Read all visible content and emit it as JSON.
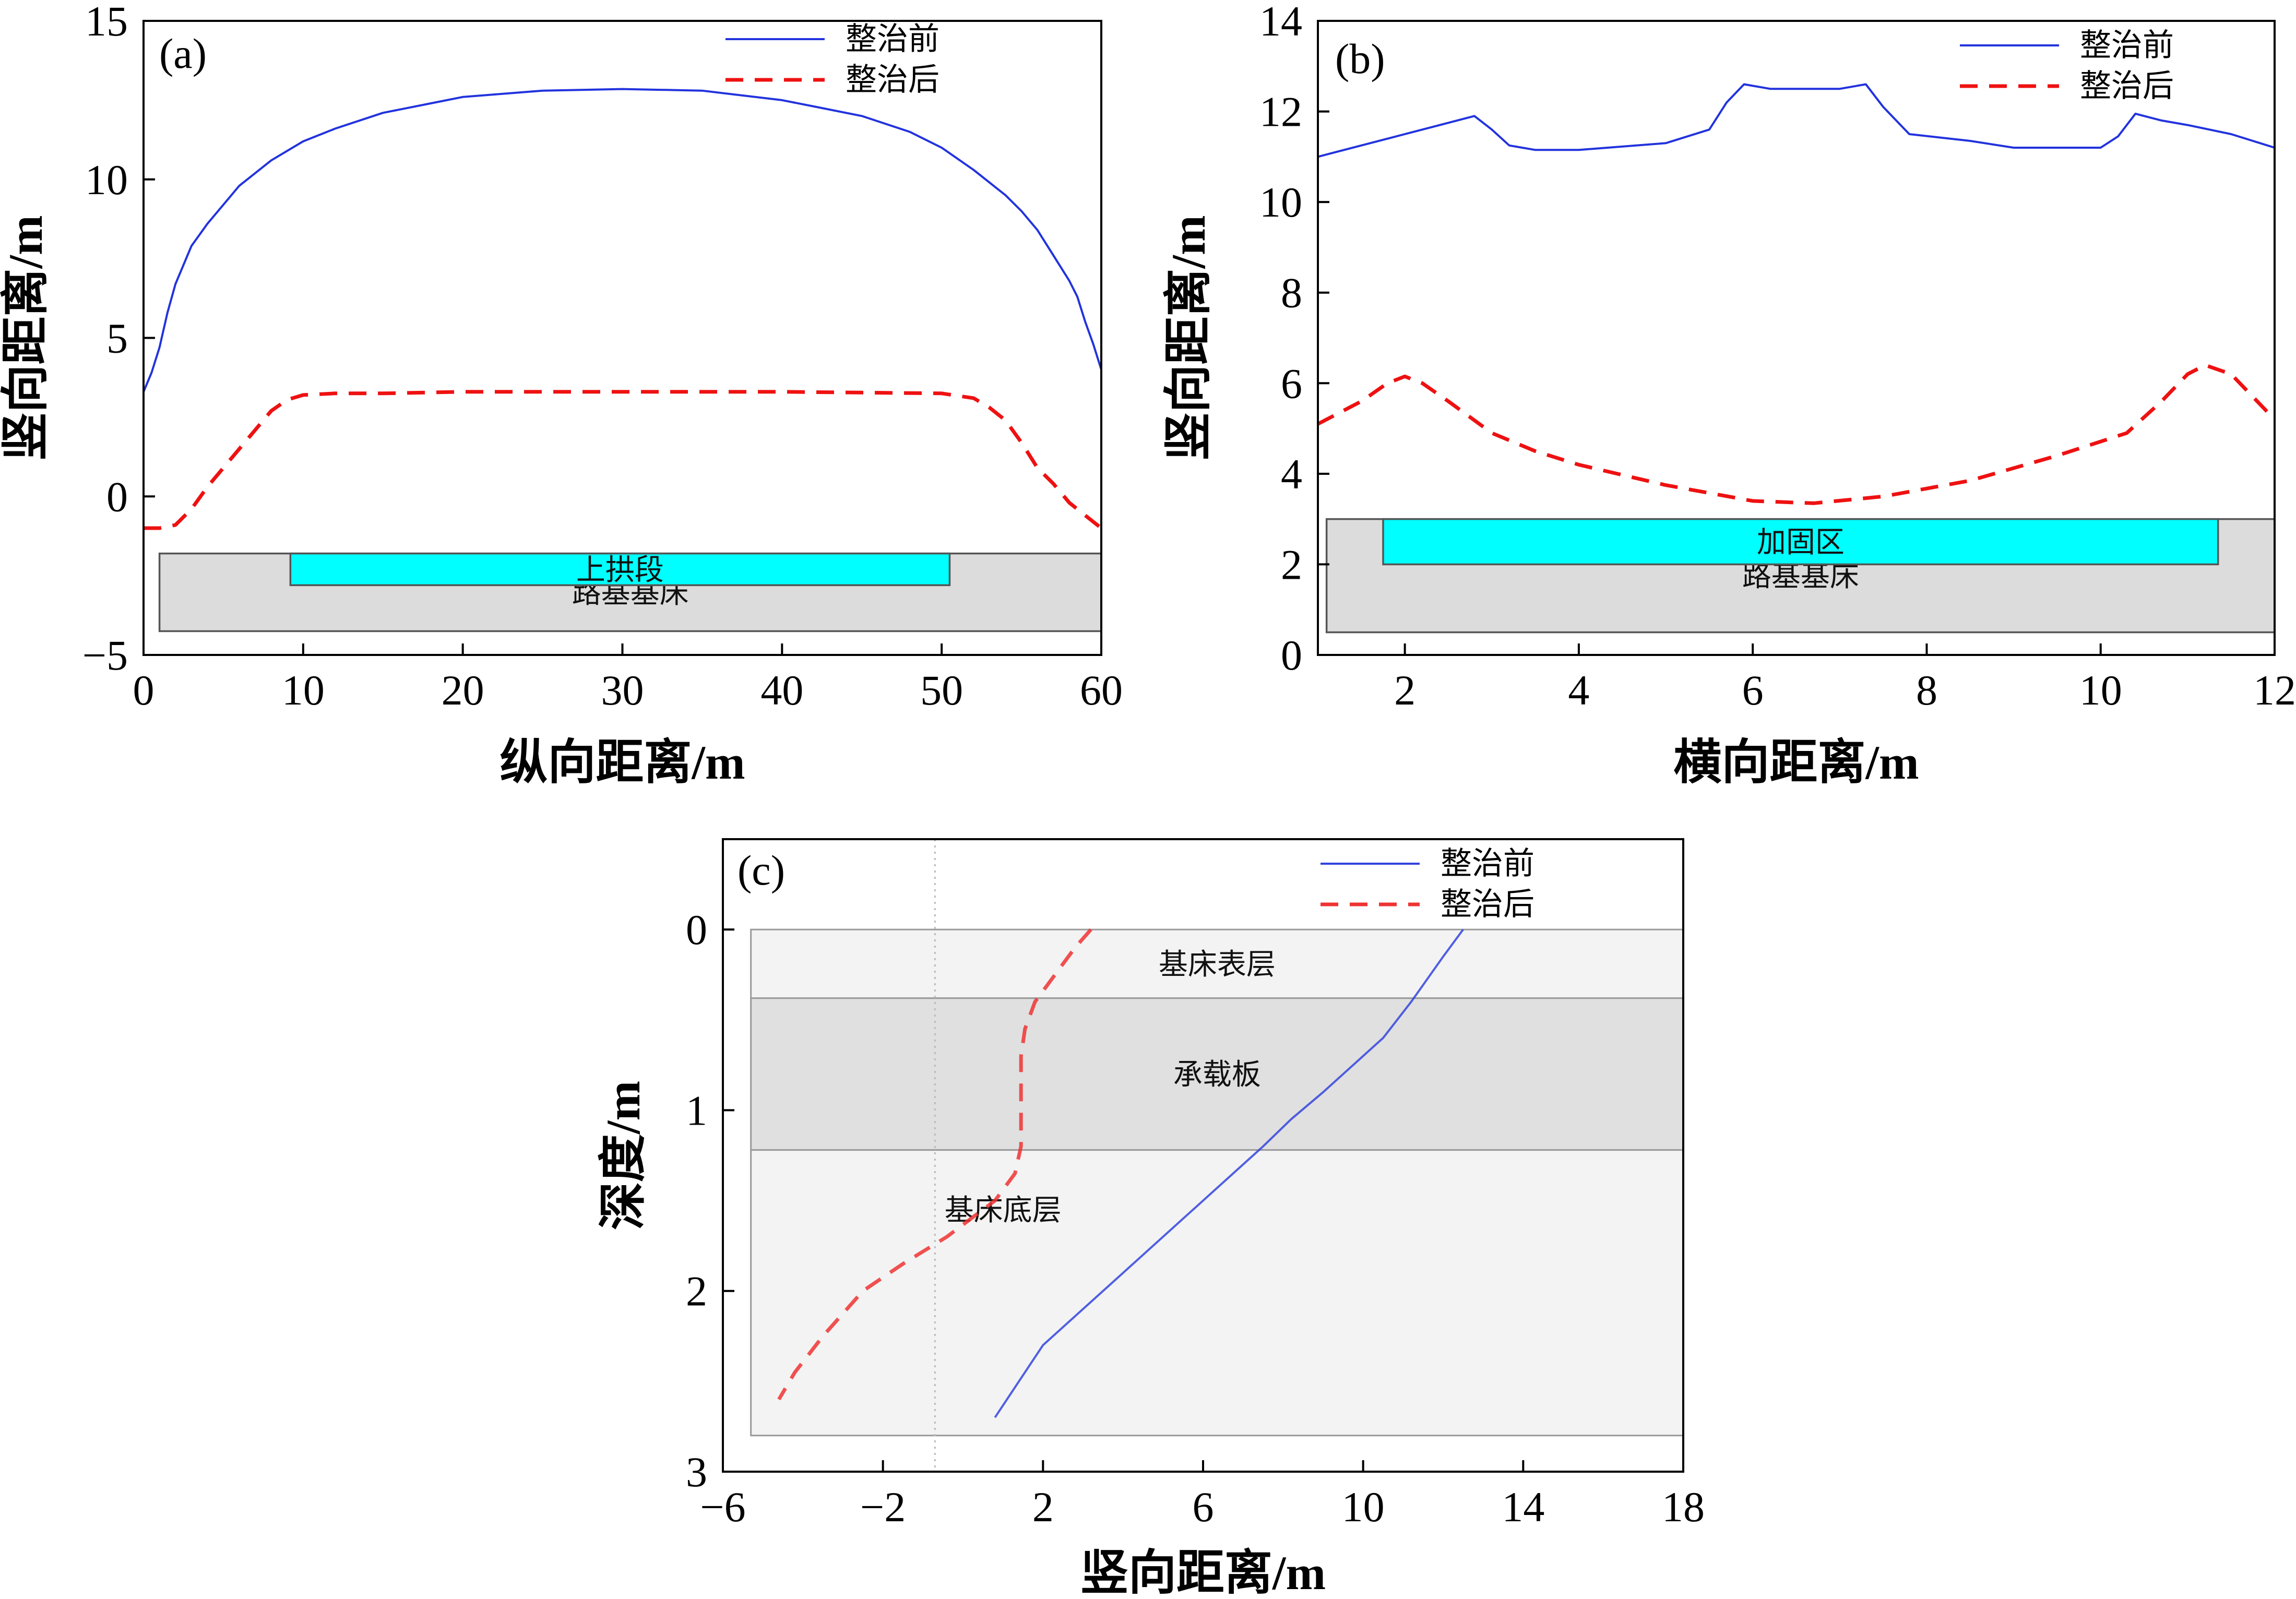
{
  "chart_data": [
    {
      "id": "a",
      "type": "line",
      "panel_label": "(a)",
      "xlabel": "纵向距离/m",
      "ylabel": "竖向距离/m",
      "xlim": [
        0,
        60
      ],
      "ylim": [
        -5,
        15
      ],
      "xticks": [
        0,
        10,
        20,
        30,
        40,
        50,
        60
      ],
      "yticks": [
        -5,
        0,
        5,
        10,
        15
      ],
      "legend_position": "top-right",
      "series": [
        {
          "name": "整治前",
          "color": "#2233dd",
          "style": "solid",
          "x": [
            0,
            0.5,
            1,
            1.5,
            2,
            3,
            4,
            5,
            6,
            8,
            10,
            12,
            15,
            18,
            20,
            25,
            30,
            35,
            40,
            42,
            45,
            48,
            50,
            52,
            54,
            55,
            56,
            57,
            58,
            58.5,
            59,
            59.5,
            60
          ],
          "y": [
            3.3,
            3.9,
            4.7,
            5.8,
            6.7,
            7.9,
            8.6,
            9.2,
            9.8,
            10.6,
            11.2,
            11.6,
            12.1,
            12.4,
            12.6,
            12.8,
            12.85,
            12.8,
            12.5,
            12.3,
            12.0,
            11.5,
            11.0,
            10.3,
            9.5,
            9.0,
            8.4,
            7.6,
            6.8,
            6.3,
            5.5,
            4.8,
            4.0
          ]
        },
        {
          "name": "整治后",
          "color": "#ee1111",
          "style": "dashed",
          "x": [
            0,
            1,
            2,
            3,
            4,
            5,
            6,
            7,
            8,
            9,
            10,
            12,
            15,
            20,
            30,
            40,
            50,
            52,
            53,
            54,
            55,
            56,
            57,
            58,
            59,
            60
          ],
          "y": [
            -1.0,
            -1.0,
            -0.9,
            -0.4,
            0.3,
            0.9,
            1.5,
            2.1,
            2.7,
            3.05,
            3.2,
            3.25,
            3.25,
            3.3,
            3.3,
            3.3,
            3.25,
            3.1,
            2.8,
            2.4,
            1.7,
            0.9,
            0.4,
            -0.2,
            -0.6,
            -1.0
          ]
        }
      ],
      "regions": [
        {
          "label": "路基基床",
          "x": [
            1,
            60
          ],
          "y": [
            -4.25,
            -1.8
          ],
          "color": "#dcdcdc"
        },
        {
          "label": "上拱段",
          "x": [
            9.2,
            50.5
          ],
          "y": [
            -2.8,
            -1.8
          ],
          "color": "#00ffff"
        }
      ]
    },
    {
      "id": "b",
      "type": "line",
      "panel_label": "(b)",
      "xlabel": "横向距离/m",
      "ylabel": "竖向距离/m",
      "xlim": [
        1,
        12
      ],
      "ylim": [
        0,
        14
      ],
      "xticks": [
        2,
        4,
        6,
        8,
        10,
        12
      ],
      "yticks": [
        0,
        2,
        4,
        6,
        8,
        10,
        12,
        14
      ],
      "legend_position": "top-right",
      "series": [
        {
          "name": "整治前",
          "color": "#2233dd",
          "style": "solid",
          "x": [
            1,
            1.5,
            2,
            2.5,
            2.8,
            3.0,
            3.2,
            3.5,
            4.0,
            5.0,
            5.5,
            5.7,
            5.9,
            6.2,
            7.0,
            7.3,
            7.5,
            7.8,
            8.5,
            9.0,
            10.0,
            10.2,
            10.4,
            10.7,
            11.0,
            11.5,
            12.0
          ],
          "y": [
            11.0,
            11.25,
            11.5,
            11.75,
            11.9,
            11.6,
            11.25,
            11.15,
            11.15,
            11.3,
            11.6,
            12.2,
            12.6,
            12.5,
            12.5,
            12.6,
            12.1,
            11.5,
            11.35,
            11.2,
            11.2,
            11.45,
            11.95,
            11.8,
            11.7,
            11.5,
            11.2
          ]
        },
        {
          "name": "整治后",
          "color": "#ee1111",
          "style": "dashed",
          "x": [
            1,
            1.5,
            1.8,
            2.0,
            2.2,
            2.5,
            3.0,
            3.5,
            4.0,
            5.0,
            6.0,
            6.7,
            7.5,
            8.5,
            9.5,
            10.3,
            10.7,
            11.0,
            11.2,
            11.5,
            12.0
          ],
          "y": [
            5.1,
            5.6,
            6.0,
            6.15,
            6.0,
            5.6,
            4.9,
            4.5,
            4.2,
            3.75,
            3.4,
            3.35,
            3.5,
            3.85,
            4.4,
            4.9,
            5.6,
            6.2,
            6.4,
            6.2,
            5.2
          ]
        }
      ],
      "regions": [
        {
          "label": "路基基床",
          "x": [
            1.1,
            12
          ],
          "y": [
            0.5,
            3.0
          ],
          "color": "#dcdcdc"
        },
        {
          "label": "加固区",
          "x": [
            1.75,
            11.35
          ],
          "y": [
            2.0,
            3.0
          ],
          "color": "#00ffff"
        }
      ]
    },
    {
      "id": "c",
      "type": "line",
      "panel_label": "(c)",
      "xlabel": "竖向距离/m",
      "ylabel": "深度/m",
      "xlim": [
        -6,
        18
      ],
      "ylim": [
        3,
        -0.5
      ],
      "xticks": [
        -6,
        -2,
        2,
        6,
        10,
        14,
        18
      ],
      "yticks": [
        0,
        1,
        2,
        3
      ],
      "legend_position": "top-right",
      "reference_line_x": -0.7,
      "series": [
        {
          "name": "整治前",
          "color": "#3344dd",
          "style": "solid",
          "x": [
            12.5,
            12.0,
            11.2,
            10.5,
            9.5,
            9.0,
            8.2,
            7.5,
            6.0,
            4.0,
            2.0,
            0.8
          ],
          "y": [
            0.0,
            0.15,
            0.4,
            0.6,
            0.8,
            0.9,
            1.05,
            1.2,
            1.5,
            1.9,
            2.3,
            2.7
          ]
        },
        {
          "name": "整治后",
          "color": "#ee3333",
          "style": "dashed",
          "x": [
            3.2,
            2.8,
            2.3,
            1.8,
            1.55,
            1.45,
            1.45,
            1.3,
            0.8,
            -0.4,
            -1.5,
            -2.5,
            -3.5,
            -4.2,
            -4.6
          ],
          "y": [
            0.0,
            0.1,
            0.25,
            0.4,
            0.55,
            0.7,
            1.2,
            1.35,
            1.5,
            1.7,
            1.85,
            2.0,
            2.25,
            2.45,
            2.6
          ]
        }
      ],
      "regions": [
        {
          "label": "基床表层",
          "x": [
            -5.3,
            18
          ],
          "y": [
            0,
            0.38
          ],
          "color": "#f3f3f3"
        },
        {
          "label": "承载板",
          "x": [
            -5.3,
            18
          ],
          "y": [
            0.38,
            1.22
          ],
          "color": "#e0e0e0"
        },
        {
          "label": "基床底层",
          "x": [
            -5.3,
            18
          ],
          "y": [
            1.22,
            2.8
          ],
          "color": "#f3f3f3"
        }
      ]
    }
  ]
}
